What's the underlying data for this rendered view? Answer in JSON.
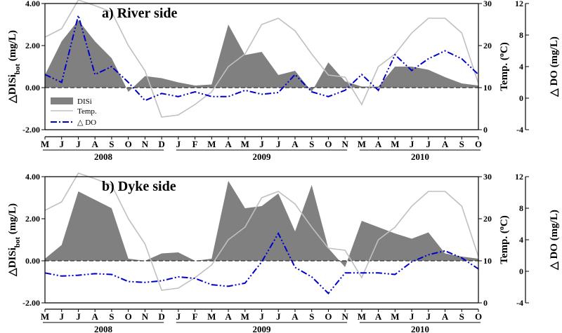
{
  "months": [
    "M",
    "J",
    "J",
    "A",
    "S",
    "O",
    "N",
    "D",
    "J",
    "F",
    "M",
    "A",
    "M",
    "J",
    "J",
    "A",
    "S",
    "O",
    "N",
    "M",
    "A",
    "M",
    "J",
    "J",
    "A",
    "S",
    "O"
  ],
  "years": [
    {
      "label": "2008",
      "first": 0,
      "last": 7
    },
    {
      "label": "2009",
      "first": 8,
      "last": 18
    },
    {
      "label": "2010",
      "first": 19,
      "last": 26
    }
  ],
  "legend": {
    "disi": "DISi",
    "temp": "Temp.",
    "do": "△ DO"
  },
  "colors": {
    "disi": "#808080",
    "temp": "#c0c0c0",
    "do": "#0000cc",
    "axis": "#000000"
  },
  "axes": {
    "left_ticks": [
      "4.00",
      "2.00",
      "0.00",
      "-2.00"
    ],
    "mid_ticks": [
      "30",
      "20",
      "10",
      "0"
    ],
    "right_ticks": [
      "12",
      "8",
      "4",
      "0",
      "-4"
    ],
    "left_label_main": "△DISi",
    "left_label_sub": "bot",
    "left_label_unit": " (mg/L)",
    "mid_label": "Temp. (",
    "mid_label_sup": "o",
    "mid_label_unit": "C)",
    "right_label": "△ DO (mg/L)"
  },
  "chart_data": [
    {
      "type": "area",
      "title": "a) River side",
      "x": [
        "M",
        "J",
        "J",
        "A",
        "S",
        "O",
        "N",
        "D",
        "J",
        "F",
        "M",
        "A",
        "M",
        "J",
        "J",
        "A",
        "S",
        "O",
        "N",
        "M",
        "A",
        "M",
        "J",
        "J",
        "A",
        "S",
        "O"
      ],
      "ylim_left": [
        -2,
        4
      ],
      "ylim_temp": [
        0,
        30
      ],
      "ylim_do": [
        -4,
        12
      ],
      "series": [
        {
          "name": "DISi",
          "axis": "left",
          "values": [
            0.6,
            2.2,
            3.2,
            2.2,
            1.4,
            -0.2,
            0.55,
            0.45,
            0.25,
            0.1,
            0.15,
            3.0,
            1.55,
            1.7,
            0.6,
            0.8,
            -0.2,
            1.2,
            0.3,
            0.05,
            0.05,
            1.0,
            1.0,
            0.85,
            0.5,
            0.2,
            0.1
          ]
        },
        {
          "name": "Temp.",
          "axis": "temp",
          "values": [
            22,
            24,
            31,
            29.5,
            28,
            20,
            14,
            3,
            3.5,
            6,
            9,
            15,
            18,
            25,
            26.5,
            23.5,
            18,
            13,
            12.5,
            6,
            15,
            18,
            23,
            26.5,
            26.5,
            23,
            11
          ]
        },
        {
          "name": "△ DO",
          "axis": "do",
          "values": [
            3,
            2,
            10.5,
            3,
            4,
            2,
            -0.3,
            0.6,
            0.2,
            0.8,
            0.2,
            0.2,
            1,
            0.5,
            0.7,
            3,
            0.8,
            0.2,
            1,
            3,
            1,
            5.5,
            3.5,
            5,
            6,
            5,
            3
          ]
        }
      ]
    },
    {
      "type": "area",
      "title": "b) Dyke side",
      "x": [
        "M",
        "J",
        "J",
        "A",
        "S",
        "O",
        "N",
        "D",
        "J",
        "F",
        "M",
        "A",
        "M",
        "J",
        "J",
        "A",
        "S",
        "O",
        "N",
        "M",
        "A",
        "M",
        "J",
        "J",
        "A",
        "S",
        "O"
      ],
      "ylim_left": [
        -2,
        4
      ],
      "ylim_temp": [
        0,
        30
      ],
      "ylim_do": [
        -4,
        12
      ],
      "series": [
        {
          "name": "DISi",
          "axis": "left",
          "values": [
            0.1,
            0.75,
            3.3,
            2.9,
            2.5,
            0.1,
            0.0,
            0.35,
            0.4,
            0.0,
            0.1,
            3.8,
            2.5,
            2.6,
            3.2,
            1.4,
            3.6,
            0.6,
            -0.3,
            1.9,
            1.6,
            1.3,
            1.05,
            1.35,
            0.35,
            0.2,
            0.1
          ]
        },
        {
          "name": "Temp.",
          "axis": "temp",
          "values": [
            22,
            24,
            31,
            29.5,
            28,
            20,
            14,
            3,
            3.5,
            6,
            9,
            15,
            18,
            25,
            26.5,
            23.5,
            18,
            13,
            12.5,
            6,
            15,
            18,
            23,
            26.5,
            26.5,
            23,
            11
          ]
        },
        {
          "name": "△ DO",
          "axis": "do",
          "values": [
            -0.2,
            -0.6,
            -0.5,
            -0.3,
            -0.4,
            -1.3,
            -1.4,
            -1.2,
            -0.7,
            -0.9,
            -1.7,
            -1.9,
            -1.5,
            1.2,
            4.8,
            0.5,
            -0.7,
            -2.8,
            -0.2,
            -0.2,
            -0.2,
            -0.4,
            1.2,
            2.1,
            2.6,
            1.7,
            0.3
          ]
        }
      ]
    }
  ]
}
